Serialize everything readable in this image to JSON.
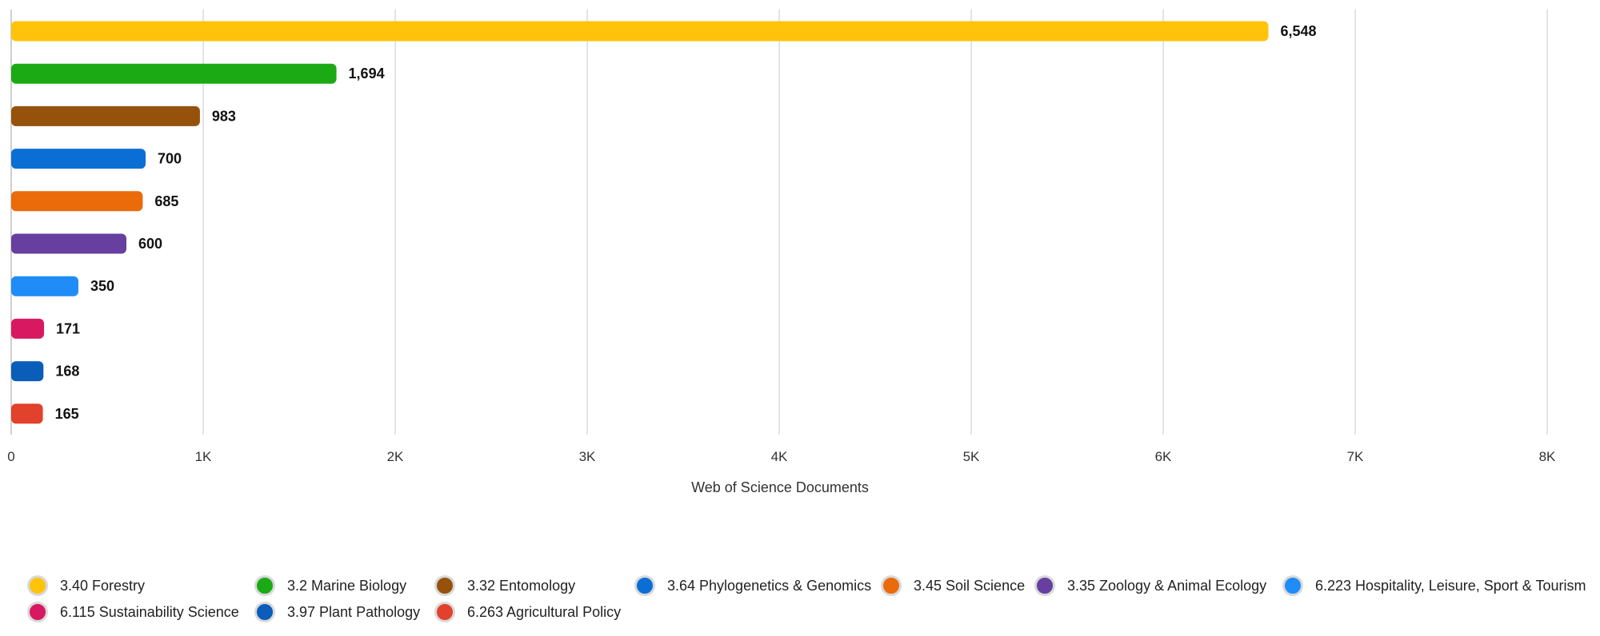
{
  "chart_data": {
    "type": "bar",
    "orientation": "horizontal",
    "xlabel": "Web of Science Documents",
    "xlim": [
      0,
      8000
    ],
    "x_ticks": [
      "0",
      "1K",
      "2K",
      "3K",
      "4K",
      "5K",
      "6K",
      "7K",
      "8K"
    ],
    "grid": true,
    "legend_position": "bottom",
    "categories": [
      "3.40 Forestry",
      "3.2 Marine Biology",
      "3.32 Entomology",
      "3.64 Phylogenetics & Genomics",
      "3.45 Soil Science",
      "3.35 Zoology & Animal Ecology",
      "6.223 Hospitality, Leisure, Sport & Tourism",
      "6.115 Sustainability Science",
      "3.97 Plant Pathology",
      "6.263 Agricultural Policy"
    ],
    "values": [
      6548,
      1694,
      983,
      700,
      685,
      600,
      350,
      171,
      168,
      165
    ],
    "value_labels": [
      "6,548",
      "1,694",
      "983",
      "700",
      "685",
      "600",
      "350",
      "171",
      "168",
      "165"
    ],
    "colors": [
      "#FFC30B",
      "#1BAA14",
      "#96520B",
      "#0B6ED5",
      "#EB6A0A",
      "#663FA0",
      "#1F8CF7",
      "#D81860",
      "#0A5DB9",
      "#E2412C"
    ]
  }
}
